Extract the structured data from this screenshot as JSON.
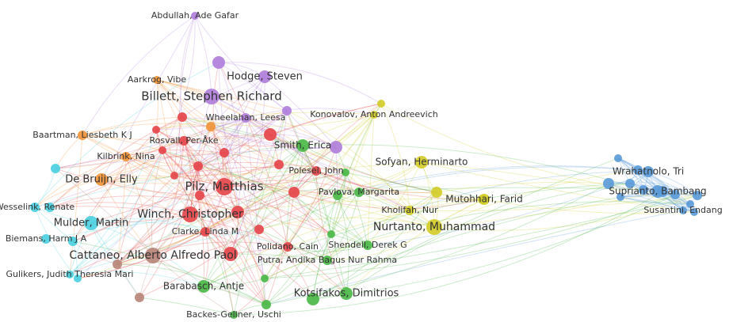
{
  "nodes": [
    {
      "label": "Abdullah, Ade Gafar"
    },
    {
      "label": "Aarkrog, Vibe"
    },
    {
      "label": "Hodge, Steven"
    },
    {
      "label": "Billett, Stephen Richard"
    },
    {
      "label": "Wheelahan, Leesa"
    },
    {
      "label": "Konovalov, Anton Andreevich"
    },
    {
      "label": "Baartman, Liesbeth K J"
    },
    {
      "label": "Rosvall, Per-Åke"
    },
    {
      "label": "Smith, Erica"
    },
    {
      "label": "Kilbrink, Nina"
    },
    {
      "label": "Sofyan, Herminarto"
    },
    {
      "label": "Polesel, John"
    },
    {
      "label": "De Bruijn, Elly"
    },
    {
      "label": "Wrahatnolo, Tri"
    },
    {
      "label": "Pilz, Matthias"
    },
    {
      "label": "Pavlova, Margarita"
    },
    {
      "label": "Suprianto, Bambang"
    },
    {
      "label": "Mutohhari, Farid"
    },
    {
      "label": "Wesselink, Renate"
    },
    {
      "label": "Winch, Christopher"
    },
    {
      "label": "Kholifah, Nur"
    },
    {
      "label": "Susantini, Endang"
    },
    {
      "label": "Mulder, Martin"
    },
    {
      "label": "Nurtanto, Muhammad"
    },
    {
      "label": "Clarke, Linda M"
    },
    {
      "label": "Biemans, Harm J A"
    },
    {
      "label": "Shendell, Derek G"
    },
    {
      "label": "Polidano, Cain"
    },
    {
      "label": "Cattaneo, Alberto Alfredo Paol"
    },
    {
      "label": "Putra, Andika Bagus Nur Rahma"
    },
    {
      "label": "Gulikers, Judith Theresia Mari"
    },
    {
      "label": "Barabasch, Antje"
    },
    {
      "label": "Kotsifakos, Dimitrios"
    },
    {
      "label": "Backes-Gellner, Uschi"
    }
  ]
}
